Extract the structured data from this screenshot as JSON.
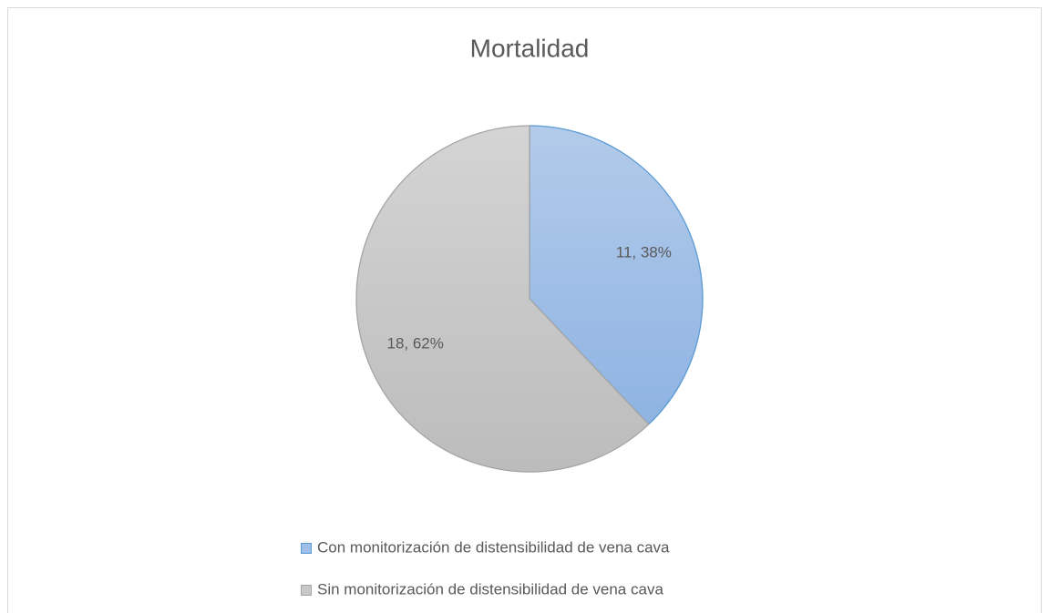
{
  "chart_data": {
    "type": "pie",
    "title": "Mortalidad",
    "categories": [
      "Con monitorización de distensibilidad de vena cava",
      "Sin monitorización de distensibilidad de vena cava"
    ],
    "values": [
      11,
      18
    ],
    "value_labels": [
      "11, 38%",
      "18, 62%"
    ],
    "colors": [
      "#9fbfe6",
      "#c8c8c8"
    ],
    "legend": "bottom"
  }
}
